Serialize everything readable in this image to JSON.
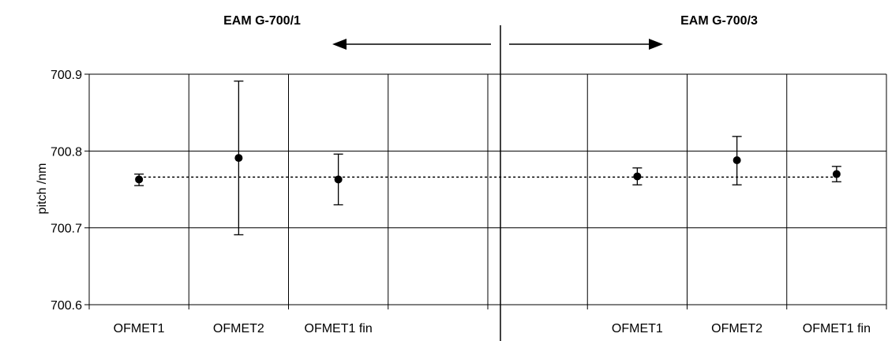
{
  "chart_data": {
    "type": "scatter",
    "title": "",
    "xlabel": "",
    "ylabel": "pitch  /nm",
    "ylim": [
      700.6,
      700.9
    ],
    "yticks": [
      "700.6",
      "700.7",
      "700.8",
      "700.9"
    ],
    "grid": true,
    "categories": [
      "OFMET1",
      "OFMET2",
      "OFMET1 fin",
      "",
      "",
      "OFMET1",
      "OFMET2",
      "OFMET1 fin"
    ],
    "group_labels": [
      "EAM G-700/1",
      "EAM G-700/3"
    ],
    "reference_line": {
      "y": 700.766,
      "style": "dotted"
    },
    "series": [
      {
        "values": [
          700.763,
          700.791,
          700.763,
          null,
          null,
          700.767,
          700.788,
          700.77
        ],
        "err_low": [
          700.755,
          700.691,
          700.73,
          null,
          null,
          700.756,
          700.756,
          700.76
        ],
        "err_high": [
          700.77,
          700.891,
          700.796,
          null,
          null,
          700.778,
          700.819,
          700.78
        ]
      }
    ]
  }
}
